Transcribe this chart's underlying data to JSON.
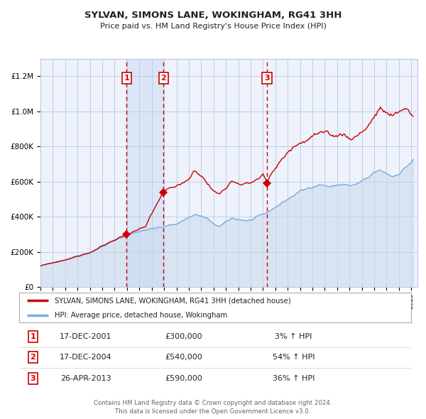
{
  "title": "SYLVAN, SIMONS LANE, WOKINGHAM, RG41 3HH",
  "subtitle": "Price paid vs. HM Land Registry's House Price Index (HPI)",
  "legend_line1": "SYLVAN, SIMONS LANE, WOKINGHAM, RG41 3HH (detached house)",
  "legend_line2": "HPI: Average price, detached house, Wokingham",
  "transactions": [
    {
      "num": 1,
      "date": "17-DEC-2001",
      "price": 300000,
      "pct": "3%",
      "dir": "↑"
    },
    {
      "num": 2,
      "date": "17-DEC-2004",
      "price": 540000,
      "pct": "54%",
      "dir": "↑"
    },
    {
      "num": 3,
      "date": "26-APR-2013",
      "price": 590000,
      "pct": "36%",
      "dir": "↑"
    }
  ],
  "transaction_years": [
    2001.96,
    2004.96,
    2013.32
  ],
  "transaction_prices": [
    300000,
    540000,
    590000
  ],
  "hpi_color": "#7aacdc",
  "price_color": "#cc0000",
  "bg_color": "#eef2fb",
  "shade_color": "#dbe5f5",
  "grid_color": "#b8c8e8",
  "footer": "Contains HM Land Registry data © Crown copyright and database right 2024.\nThis data is licensed under the Open Government Licence v3.0.",
  "ylim": [
    0,
    1300000
  ],
  "xmin": 1995,
  "xmax": 2025.5
}
